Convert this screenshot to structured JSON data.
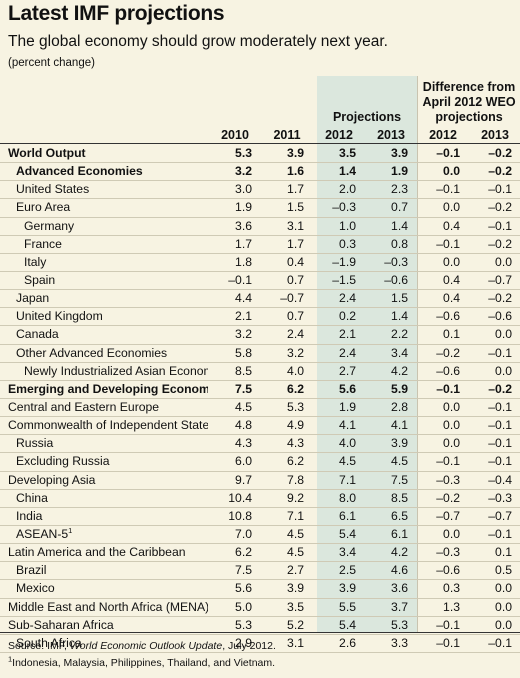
{
  "title": "Latest IMF projections",
  "subtitle": "The global economy should grow moderately next year.",
  "unit_note": "(percent change)",
  "group_headers": {
    "projections": "Projections",
    "difference": "Difference from April 2012 WEO projections"
  },
  "columns": [
    "2010",
    "2011",
    "2012",
    "2013",
    "2012",
    "2013"
  ],
  "rows": [
    {
      "label": "World Output",
      "values": [
        "5.3",
        "3.9",
        "3.5",
        "3.9",
        "–0.1",
        "–0.2"
      ],
      "level": 0,
      "bold": true
    },
    {
      "label": "Advanced Economies",
      "values": [
        "3.2",
        "1.6",
        "1.4",
        "1.9",
        "0.0",
        "–0.2"
      ],
      "level": 1,
      "bold": true
    },
    {
      "label": "United States",
      "values": [
        "3.0",
        "1.7",
        "2.0",
        "2.3",
        "–0.1",
        "–0.1"
      ],
      "level": 1,
      "bold": false
    },
    {
      "label": "Euro Area",
      "values": [
        "1.9",
        "1.5",
        "–0.3",
        "0.7",
        "0.0",
        "–0.2"
      ],
      "level": 1,
      "bold": false
    },
    {
      "label": "Germany",
      "values": [
        "3.6",
        "3.1",
        "1.0",
        "1.4",
        "0.4",
        "–0.1"
      ],
      "level": 2,
      "bold": false
    },
    {
      "label": "France",
      "values": [
        "1.7",
        "1.7",
        "0.3",
        "0.8",
        "–0.1",
        "–0.2"
      ],
      "level": 2,
      "bold": false
    },
    {
      "label": "Italy",
      "values": [
        "1.8",
        "0.4",
        "–1.9",
        "–0.3",
        "0.0",
        "0.0"
      ],
      "level": 2,
      "bold": false
    },
    {
      "label": "Spain",
      "values": [
        "–0.1",
        "0.7",
        "–1.5",
        "–0.6",
        "0.4",
        "–0.7"
      ],
      "level": 2,
      "bold": false
    },
    {
      "label": "Japan",
      "values": [
        "4.4",
        "–0.7",
        "2.4",
        "1.5",
        "0.4",
        "–0.2"
      ],
      "level": 1,
      "bold": false
    },
    {
      "label": "United Kingdom",
      "values": [
        "2.1",
        "0.7",
        "0.2",
        "1.4",
        "–0.6",
        "–0.6"
      ],
      "level": 1,
      "bold": false
    },
    {
      "label": "Canada",
      "values": [
        "3.2",
        "2.4",
        "2.1",
        "2.2",
        "0.1",
        "0.0"
      ],
      "level": 1,
      "bold": false
    },
    {
      "label": "Other Advanced Economies",
      "values": [
        "5.8",
        "3.2",
        "2.4",
        "3.4",
        "–0.2",
        "–0.1"
      ],
      "level": 1,
      "bold": false
    },
    {
      "label": "Newly Industrialized Asian Economies",
      "values": [
        "8.5",
        "4.0",
        "2.7",
        "4.2",
        "–0.6",
        "0.0"
      ],
      "level": 2,
      "bold": false
    },
    {
      "label": "Emerging and Developing Economies",
      "values": [
        "7.5",
        "6.2",
        "5.6",
        "5.9",
        "–0.1",
        "–0.2"
      ],
      "level": 0,
      "bold": true
    },
    {
      "label": "Central and Eastern Europe",
      "values": [
        "4.5",
        "5.3",
        "1.9",
        "2.8",
        "0.0",
        "–0.1"
      ],
      "level": 0,
      "bold": false
    },
    {
      "label": "Commonwealth of Independent States",
      "values": [
        "4.8",
        "4.9",
        "4.1",
        "4.1",
        "0.0",
        "–0.1"
      ],
      "level": 0,
      "bold": false
    },
    {
      "label": "Russia",
      "values": [
        "4.3",
        "4.3",
        "4.0",
        "3.9",
        "0.0",
        "–0.1"
      ],
      "level": 1,
      "bold": false
    },
    {
      "label": "Excluding Russia",
      "values": [
        "6.0",
        "6.2",
        "4.5",
        "4.5",
        "–0.1",
        "–0.1"
      ],
      "level": 1,
      "bold": false
    },
    {
      "label": "Developing Asia",
      "values": [
        "9.7",
        "7.8",
        "7.1",
        "7.5",
        "–0.3",
        "–0.4"
      ],
      "level": 0,
      "bold": false
    },
    {
      "label": "China",
      "values": [
        "10.4",
        "9.2",
        "8.0",
        "8.5",
        "–0.2",
        "–0.3"
      ],
      "level": 1,
      "bold": false
    },
    {
      "label": "India",
      "values": [
        "10.8",
        "7.1",
        "6.1",
        "6.5",
        "–0.7",
        "–0.7"
      ],
      "level": 1,
      "bold": false
    },
    {
      "label": "ASEAN-5",
      "sup": "1",
      "values": [
        "7.0",
        "4.5",
        "5.4",
        "6.1",
        "0.0",
        "–0.1"
      ],
      "level": 1,
      "bold": false
    },
    {
      "label": "Latin America and the Caribbean",
      "values": [
        "6.2",
        "4.5",
        "3.4",
        "4.2",
        "–0.3",
        "0.1"
      ],
      "level": 0,
      "bold": false
    },
    {
      "label": "Brazil",
      "values": [
        "7.5",
        "2.7",
        "2.5",
        "4.6",
        "–0.6",
        "0.5"
      ],
      "level": 1,
      "bold": false
    },
    {
      "label": "Mexico",
      "values": [
        "5.6",
        "3.9",
        "3.9",
        "3.6",
        "0.3",
        "0.0"
      ],
      "level": 1,
      "bold": false
    },
    {
      "label": "Middle East and North Africa (MENA)",
      "values": [
        "5.0",
        "3.5",
        "5.5",
        "3.7",
        "1.3",
        "0.0"
      ],
      "level": 0,
      "bold": false
    },
    {
      "label": "Sub-Saharan Africa",
      "values": [
        "5.3",
        "5.2",
        "5.4",
        "5.3",
        "–0.1",
        "0.0"
      ],
      "level": 0,
      "bold": false
    },
    {
      "label": "South Africa",
      "values": [
        "2.9",
        "3.1",
        "2.6",
        "3.3",
        "–0.1",
        "–0.1"
      ],
      "level": 1,
      "bold": false
    }
  ],
  "source": {
    "prefix": "Source: IMF, ",
    "publication": "World Economic Outlook Update",
    "suffix": ", July 2012."
  },
  "footnote": {
    "marker": "1",
    "text": "Indonesia, Malaysia, Philippines, Thailand, and Vietnam."
  },
  "colors": {
    "background": "#f7f3e2",
    "projection_shade": "#dbe7dd"
  }
}
